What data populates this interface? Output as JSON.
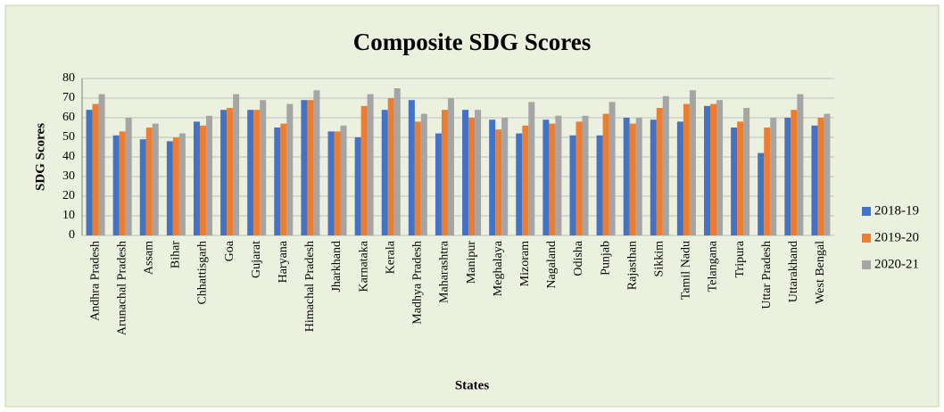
{
  "chart_data": {
    "type": "bar",
    "title": "Composite SDG Scores",
    "x_label": "States",
    "y_label": "SDG Scores",
    "categories": [
      "Andhra Pradesh",
      "Arunachal Pradesh",
      "Assam",
      "Bihar",
      "Chhattisgarh",
      "Goa",
      "Gujarat",
      "Haryana",
      "Himachal Pradesh",
      "Jharkhand",
      "Karnataka",
      "Kerala",
      "Madhya Pradesh",
      "Maharashtra",
      "Manipur",
      "Meghalaya",
      "Mizoram",
      "Nagaland",
      "Odisha",
      "Punjab",
      "Rajasthan",
      "Sikkim",
      "Tamil Nadu",
      "Telangana",
      "Tripura",
      "Uttar Pradesh",
      "Uttarakhand",
      "West Bengal"
    ],
    "series": [
      {
        "name": "2018-19",
        "color": "#4472c4",
        "values": [
          64,
          51,
          49,
          48,
          58,
          64,
          64,
          55,
          69,
          53,
          50,
          64,
          69,
          52,
          64,
          59,
          52,
          59,
          51,
          51,
          60,
          59,
          58,
          66,
          55,
          42,
          60,
          56
        ]
      },
      {
        "name": "2019-20",
        "color": "#ed7d31",
        "values": [
          67,
          53,
          55,
          50,
          56,
          65,
          64,
          57,
          69,
          53,
          66,
          70,
          58,
          64,
          60,
          54,
          56,
          57,
          58,
          62,
          57,
          65,
          67,
          67,
          58,
          55,
          64,
          60
        ]
      },
      {
        "name": "2020-21",
        "color": "#a5a5a5",
        "values": [
          72,
          60,
          57,
          52,
          61,
          72,
          69,
          67,
          74,
          56,
          72,
          75,
          62,
          70,
          64,
          60,
          68,
          61,
          61,
          68,
          60,
          71,
          74,
          69,
          65,
          60,
          72,
          62
        ]
      }
    ],
    "ylim": [
      0,
      80
    ],
    "yticks": [
      0,
      10,
      20,
      30,
      40,
      50,
      60,
      70,
      80
    ],
    "grid": true,
    "legend": "right"
  }
}
